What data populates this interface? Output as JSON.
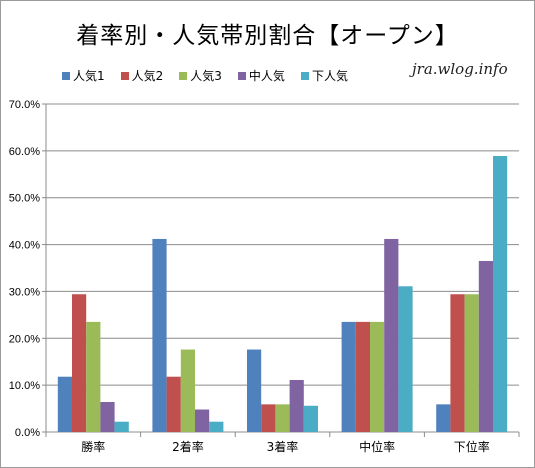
{
  "chart_data": {
    "type": "bar",
    "title": "着率別・人気帯別割合【オープン】",
    "watermark": "jra.wlog.info",
    "categories": [
      "勝率",
      "2着率",
      "3着率",
      "中位率",
      "下位率"
    ],
    "series": [
      {
        "name": "人気1",
        "color": "#4f81bd",
        "values": [
          11.8,
          41.2,
          17.6,
          23.5,
          5.9
        ]
      },
      {
        "name": "人気2",
        "color": "#c0504d",
        "values": [
          29.4,
          11.8,
          5.9,
          23.5,
          29.4
        ]
      },
      {
        "name": "人気3",
        "color": "#9bbb59",
        "values": [
          23.5,
          17.6,
          5.9,
          23.5,
          29.4
        ]
      },
      {
        "name": "中人気",
        "color": "#8064a2",
        "values": [
          6.4,
          4.8,
          11.1,
          41.2,
          36.5
        ]
      },
      {
        "name": "下人気",
        "color": "#4bacc6",
        "values": [
          2.2,
          2.2,
          5.6,
          31.1,
          58.9
        ]
      }
    ],
    "ylim": [
      0,
      70
    ],
    "yticks": [
      "0.0%",
      "10.0%",
      "20.0%",
      "30.0%",
      "40.0%",
      "50.0%",
      "60.0%",
      "70.0%"
    ],
    "grid": true,
    "legend_position": "top-left"
  }
}
